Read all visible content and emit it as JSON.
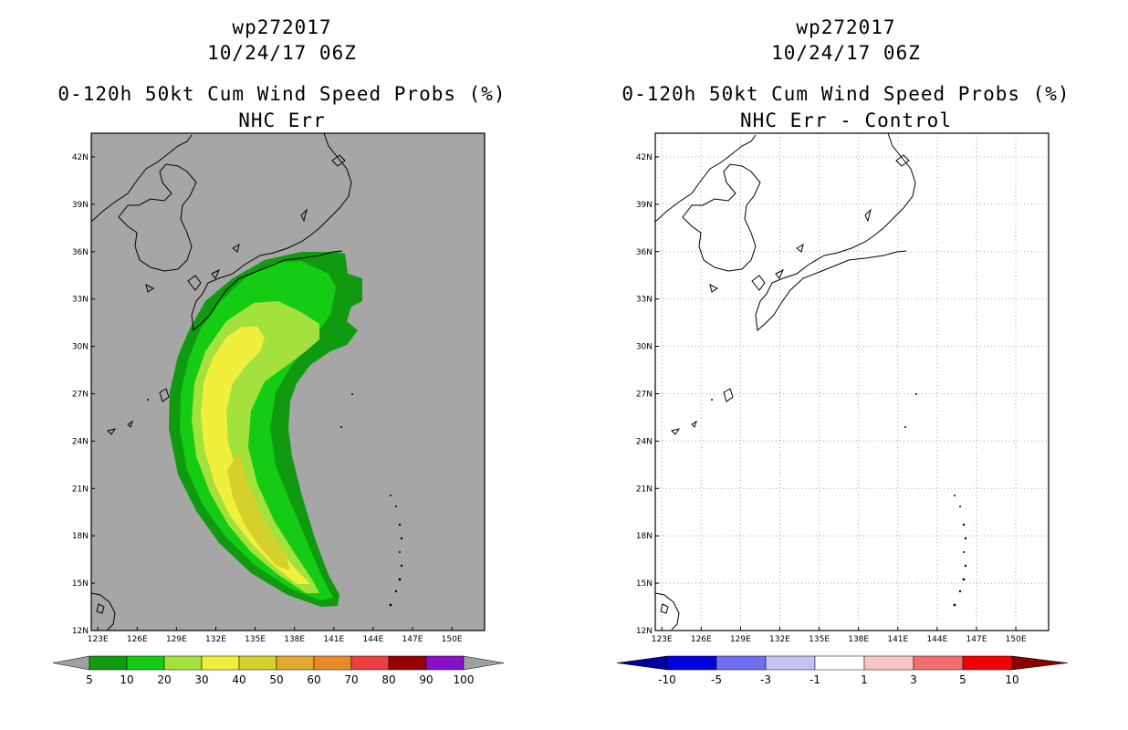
{
  "left_panel": {
    "storm_id": "wp272017",
    "datetime": "10/24/17 06Z",
    "product": "0-120h 50kt Cum Wind Speed Probs (%)",
    "subtitle": "NHC Err",
    "lat_labels": [
      "12N",
      "15N",
      "18N",
      "21N",
      "24N",
      "27N",
      "30N",
      "33N",
      "36N",
      "39N",
      "42N"
    ],
    "lon_labels": [
      "123E",
      "126E",
      "129E",
      "132E",
      "135E",
      "138E",
      "141E",
      "144E",
      "147E",
      "150E"
    ],
    "colorbar": {
      "labels": [
        "5",
        "10",
        "20",
        "30",
        "40",
        "50",
        "60",
        "70",
        "80",
        "90",
        "100"
      ],
      "colors": [
        "#109a10",
        "#14cc14",
        "#a3e23c",
        "#f0f03c",
        "#d6d02c",
        "#e0aa30",
        "#e88a2a",
        "#ec4040",
        "#960000",
        "#8a10c8"
      ],
      "end_color": "#a0a0a0"
    },
    "ocean_color": "#a6a6a6"
  },
  "right_panel": {
    "storm_id": "wp272017",
    "datetime": "10/24/17 06Z",
    "product": "0-120h 50kt Cum Wind Speed Probs (%)",
    "subtitle": "NHC Err - Control",
    "lat_labels": [
      "12N",
      "15N",
      "18N",
      "21N",
      "24N",
      "27N",
      "30N",
      "33N",
      "36N",
      "39N",
      "42N"
    ],
    "lon_labels": [
      "123E",
      "126E",
      "129E",
      "132E",
      "135E",
      "138E",
      "141E",
      "144E",
      "147E",
      "150E"
    ],
    "colorbar": {
      "labels": [
        "-10",
        "-5",
        "-3",
        "-1",
        "1",
        "3",
        "5",
        "10"
      ],
      "colors": [
        "#0000e0",
        "#6e6ef0",
        "#c4c4f4",
        "#ffffff",
        "#f8c4c4",
        "#f07070",
        "#f00000"
      ],
      "end_low_color": "#0000a0",
      "end_high_color": "#8a0000"
    }
  }
}
